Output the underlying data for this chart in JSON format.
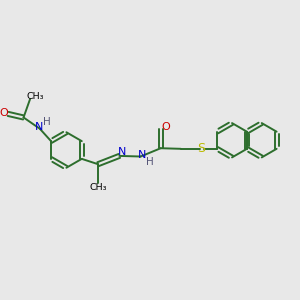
{
  "bg": "#e8e8e8",
  "bc": "#2d6e2d",
  "O_color": "#cc0000",
  "N_color": "#0000cc",
  "S_color": "#bbbb00",
  "H_color": "#555577",
  "lw": 1.4,
  "r_ring": 0.6,
  "figsize": [
    3.0,
    3.0
  ],
  "dpi": 100,
  "xlim": [
    0,
    10
  ],
  "ylim": [
    0,
    10
  ]
}
